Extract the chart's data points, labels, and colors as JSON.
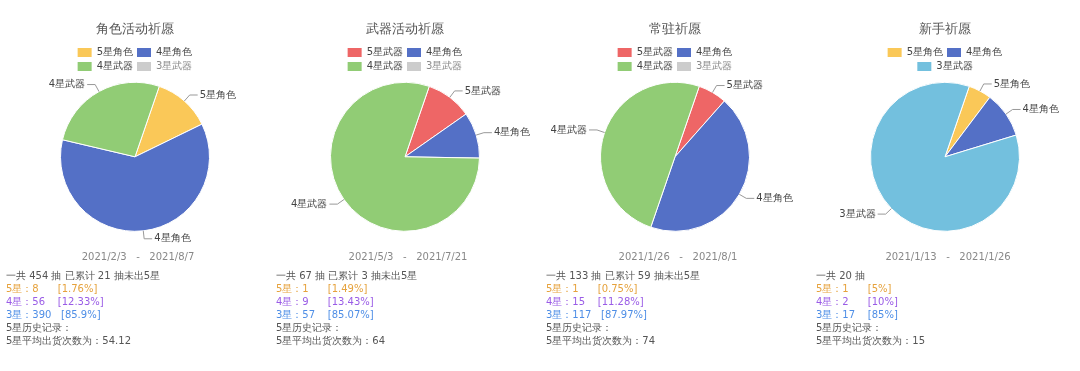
{
  "chart_data": [
    {
      "type": "pie",
      "title": "角色活动祈愿",
      "categories": [
        "5星角色",
        "4星角色",
        "4星武器",
        "3星武器"
      ],
      "values": [
        12.5,
        60.9,
        26.6,
        null
      ],
      "colors": [
        "#fac858",
        "#5470c6",
        "#91cc75",
        "#cccccc"
      ],
      "legend": "top",
      "annotations": [
        "2021/2/3   -   2021/8/7",
        "一共 454 抽 已累计 21 抽未出5星",
        "5星：8      [1.76%]",
        "4星：56    [12.33%]",
        "3星：390   [85.9%]",
        "5星历史记录：",
        "5星平均出货次数为：54.12"
      ]
    },
    {
      "type": "pie",
      "title": "武器活动祈愿",
      "categories": [
        "5星武器",
        "4星角色",
        "4星武器",
        "3星武器"
      ],
      "values": [
        10,
        10,
        80,
        null
      ],
      "colors": [
        "#ee6666",
        "#5470c6",
        "#91cc75",
        "#cccccc"
      ],
      "legend": "top",
      "annotations": [
        "2021/5/3   -   2021/7/21",
        "一共 67 抽 已累计 3 抽未出5星",
        "5星：1      [1.49%]",
        "4星：9      [13.43%]",
        "3星：57    [85.07%]",
        "5星历史记录：",
        "5星平均出货次数为：64"
      ]
    },
    {
      "type": "pie",
      "title": "常驻祈愿",
      "categories": [
        "5星武器",
        "4星角色",
        "4星武器",
        "3星武器"
      ],
      "values": [
        6.25,
        43.75,
        50,
        null
      ],
      "colors": [
        "#ee6666",
        "#5470c6",
        "#91cc75",
        "#cccccc"
      ],
      "legend": "top",
      "annotations": [
        "2021/1/26   -   2021/8/1",
        "一共 133 抽 已累计 59 抽未出5星",
        "5星：1      [0.75%]",
        "4星：15    [11.28%]",
        "3星：117   [87.97%]",
        "5星历史记录：",
        "5星平均出货次数为：74"
      ]
    },
    {
      "type": "pie",
      "title": "新手祈愿",
      "categories": [
        "5星角色",
        "4星角色",
        "3星武器"
      ],
      "values": [
        5,
        10,
        85
      ],
      "colors": [
        "#fac858",
        "#5470c6",
        "#73c0de"
      ],
      "legend": "top",
      "annotations": [
        "2021/1/13   -   2021/1/26",
        "一共 20 抽",
        "5星：1      [5%]",
        "4星：2      [10%]",
        "3星：17    [85%]",
        "5星历史记录：",
        "5星平均出货次数为：15"
      ]
    }
  ]
}
